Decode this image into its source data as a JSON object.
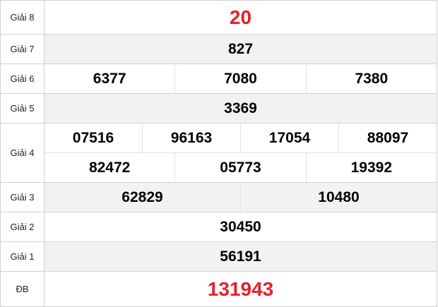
{
  "accent_color": "#e8212b",
  "prizes": [
    {
      "label": "Giải 8",
      "rows": [
        [
          "20"
        ]
      ]
    },
    {
      "label": "Giải 7",
      "rows": [
        [
          "827"
        ]
      ]
    },
    {
      "label": "Giải 6",
      "rows": [
        [
          "6377",
          "7080",
          "7380"
        ]
      ]
    },
    {
      "label": "Giải 5",
      "rows": [
        [
          "3369"
        ]
      ]
    },
    {
      "label": "Giải 4",
      "rows": [
        [
          "07516",
          "96163",
          "17054",
          "88097"
        ],
        [
          "82472",
          "05773",
          "19392"
        ]
      ]
    },
    {
      "label": "Giải 3",
      "rows": [
        [
          "62829",
          "10480"
        ]
      ]
    },
    {
      "label": "Giải 2",
      "rows": [
        [
          "30450"
        ]
      ]
    },
    {
      "label": "Giải 1",
      "rows": [
        [
          "56191"
        ]
      ]
    },
    {
      "label": "ĐB",
      "rows": [
        [
          "131943"
        ]
      ]
    }
  ]
}
